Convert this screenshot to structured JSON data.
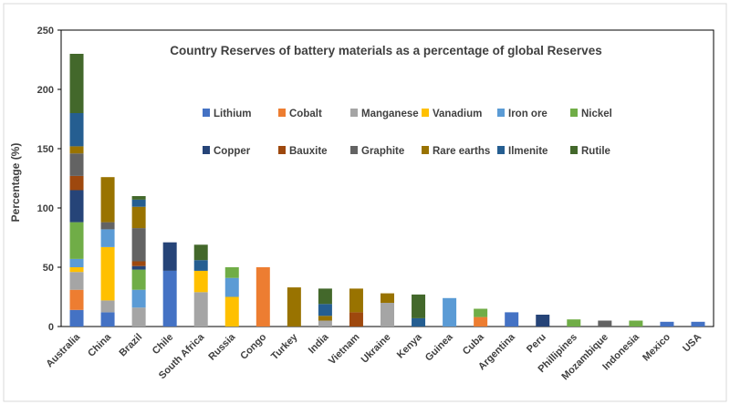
{
  "chart_data": {
    "type": "bar",
    "stacked": true,
    "title": "Country Reserves of battery materials as a percentage of global Reserves",
    "xlabel": "",
    "ylabel": "Percentage (%)",
    "ylim": [
      0,
      250
    ],
    "yticks": [
      0,
      50,
      100,
      150,
      200,
      250
    ],
    "grid": false,
    "legend_position": "inside-top-center",
    "categories": [
      "Australia",
      "China",
      "Brazil",
      "Chile",
      "South Africa",
      "Russia",
      "Congo",
      "Turkey",
      "India",
      "Vietnam",
      "Ukraine",
      "Kenya",
      "Guinea",
      "Cuba",
      "Argentina",
      "Peru",
      "Phillipines",
      "Mozambique",
      "Indonesia",
      "Mexico",
      "USA"
    ],
    "series": [
      {
        "name": "Lithium",
        "color": "#4472C4",
        "values": [
          14,
          12,
          0,
          47,
          0,
          0,
          0,
          0,
          0,
          0,
          0,
          0,
          0,
          0,
          12,
          0,
          0,
          0,
          0,
          4,
          4
        ]
      },
      {
        "name": "Cobalt",
        "color": "#ED7D31",
        "values": [
          17,
          0,
          0,
          0,
          0,
          0,
          50,
          0,
          0,
          0,
          0,
          0,
          0,
          8,
          0,
          0,
          0,
          0,
          0,
          0,
          0
        ]
      },
      {
        "name": "Manganese",
        "color": "#A5A5A5",
        "values": [
          15,
          10,
          16,
          0,
          29,
          0,
          0,
          0,
          5,
          0,
          20,
          0,
          0,
          0,
          0,
          0,
          0,
          0,
          0,
          0,
          0
        ]
      },
      {
        "name": "Vanadium",
        "color": "#FFC000",
        "values": [
          4,
          45,
          0,
          0,
          18,
          25,
          0,
          0,
          0,
          0,
          0,
          0,
          0,
          0,
          0,
          0,
          0,
          0,
          0,
          0,
          0
        ]
      },
      {
        "name": "Iron ore",
        "color": "#5B9BD5",
        "values": [
          7,
          15,
          15,
          0,
          0,
          16,
          0,
          0,
          0,
          0,
          0,
          0,
          24,
          0,
          0,
          0,
          0,
          0,
          0,
          0,
          0
        ]
      },
      {
        "name": "Nickel",
        "color": "#70AD47",
        "values": [
          31,
          0,
          17,
          0,
          0,
          9,
          0,
          0,
          0,
          0,
          0,
          0,
          0,
          7,
          0,
          0,
          6,
          0,
          5,
          0,
          0
        ]
      },
      {
        "name": "Copper",
        "color": "#264478",
        "values": [
          27,
          0,
          3,
          24,
          0,
          0,
          0,
          0,
          0,
          0,
          0,
          0,
          0,
          0,
          0,
          10,
          0,
          0,
          0,
          0,
          0
        ]
      },
      {
        "name": "Bauxite",
        "color": "#9E480E",
        "values": [
          12,
          0,
          4,
          0,
          0,
          0,
          0,
          0,
          0,
          12,
          0,
          0,
          0,
          0,
          0,
          0,
          0,
          0,
          0,
          0,
          0
        ]
      },
      {
        "name": "Graphite",
        "color": "#636363",
        "values": [
          19,
          6,
          28,
          0,
          0,
          0,
          0,
          0,
          0,
          0,
          0,
          0,
          0,
          0,
          0,
          0,
          0,
          5,
          0,
          0,
          0
        ]
      },
      {
        "name": "Rare earths",
        "color": "#997300",
        "values": [
          6,
          38,
          18,
          0,
          0,
          0,
          0,
          33,
          4,
          20,
          8,
          0,
          0,
          0,
          0,
          0,
          0,
          0,
          0,
          0,
          0
        ]
      },
      {
        "name": "Ilmenite",
        "color": "#255E91",
        "values": [
          28,
          0,
          6,
          0,
          9,
          0,
          0,
          0,
          10,
          0,
          0,
          7,
          0,
          0,
          0,
          0,
          0,
          0,
          0,
          0,
          0
        ]
      },
      {
        "name": "Rutile",
        "color": "#43682B",
        "values": [
          50,
          0,
          3,
          0,
          13,
          0,
          0,
          0,
          13,
          0,
          0,
          20,
          0,
          0,
          0,
          0,
          0,
          0,
          0,
          0,
          0
        ]
      }
    ]
  }
}
